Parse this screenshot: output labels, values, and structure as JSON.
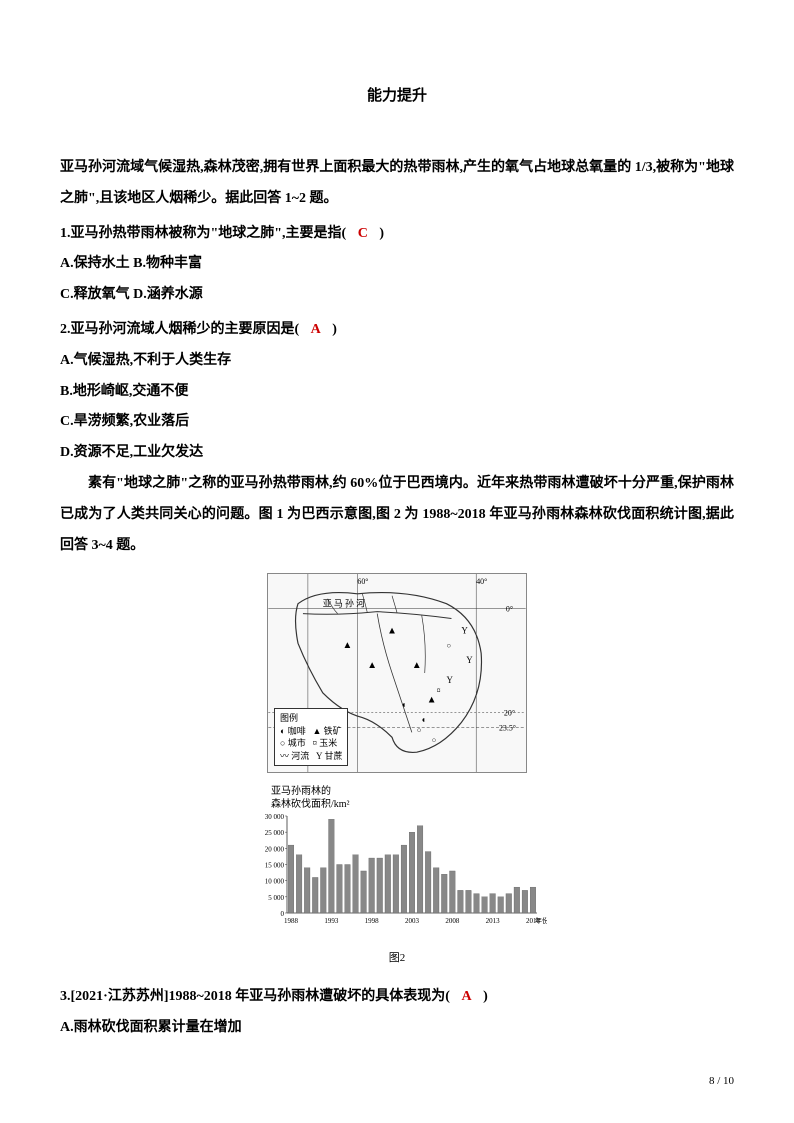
{
  "title": "能力提升",
  "intro": "亚马孙河流域气候湿热,森林茂密,拥有世界上面积最大的热带雨林,产生的氧气占地球总氧量的 1/3,被称为\"地球之肺\",且该地区人烟稀少。据此回答 1~2 题。",
  "q1": {
    "stem_pre": "1.亚马孙热带雨林被称为\"地球之肺\",主要是指(",
    "answer": "C",
    "stem_post": ")",
    "optAB": "A.保持水土  B.物种丰富",
    "optCD": "C.释放氧气  D.涵养水源"
  },
  "q2": {
    "stem_pre": "2.亚马孙河流域人烟稀少的主要原因是(",
    "answer": "A",
    "stem_post": ")",
    "optA": "A.气候湿热,不利于人类生存",
    "optB": "B.地形崎岖,交通不便",
    "optC": "C.旱涝频繁,农业落后",
    "optD": "D.资源不足,工业欠发达"
  },
  "context2": "素有\"地球之肺\"之称的亚马孙热带雨林,约 60%位于巴西境内。近年来热带雨林遭破坏十分严重,保护雨林已成为了人类共同关心的问题。图 1 为巴西示意图,图 2 为 1988~2018 年亚马孙雨林森林砍伐面积统计图,据此回答 3~4 题。",
  "map": {
    "longitudes": [
      "60°",
      "40°"
    ],
    "latitudes": [
      "0°",
      "20°",
      "23.5°"
    ],
    "river_label": "亚  马  孙  河",
    "legend_title": "图例",
    "legend_items": [
      {
        "sym": "◐",
        "label": "咖啡"
      },
      {
        "sym": "▲",
        "label": "铁矿"
      },
      {
        "sym": "○",
        "label": "城市"
      },
      {
        "sym": "¤",
        "label": "玉米"
      },
      {
        "sym": "〰",
        "label": "河流"
      },
      {
        "sym": "Y",
        "label": "甘蔗"
      }
    ]
  },
  "chart": {
    "title_line1": "亚马孙雨林的",
    "title_line2": "森林砍伐面积/km²",
    "y_ticks": [
      "0",
      "5 000",
      "10 000",
      "15 000",
      "20 000",
      "25 000",
      "30 000"
    ],
    "y_max": 30000,
    "x_labels": [
      "1988",
      "1993",
      "1998",
      "2003",
      "2008",
      "2013",
      "2018"
    ],
    "x_suffix": "年份",
    "values": [
      21000,
      18000,
      14000,
      11000,
      14000,
      29000,
      15000,
      15000,
      18000,
      13000,
      17000,
      17000,
      18000,
      18000,
      21000,
      25000,
      27000,
      19000,
      14000,
      12000,
      13000,
      7000,
      7000,
      6000,
      5000,
      6000,
      5000,
      6000,
      8000,
      7000,
      8000
    ],
    "bar_color": "#888888",
    "grid_color": "#cccccc",
    "caption": "图2"
  },
  "q3": {
    "stem_pre": "3.[2021·江苏苏州]1988~2018 年亚马孙雨林遭破坏的具体表现为(",
    "answer": "A",
    "stem_post": ")",
    "optA": "A.雨林砍伐面积累计量在增加"
  },
  "page_num": "8 / 10"
}
